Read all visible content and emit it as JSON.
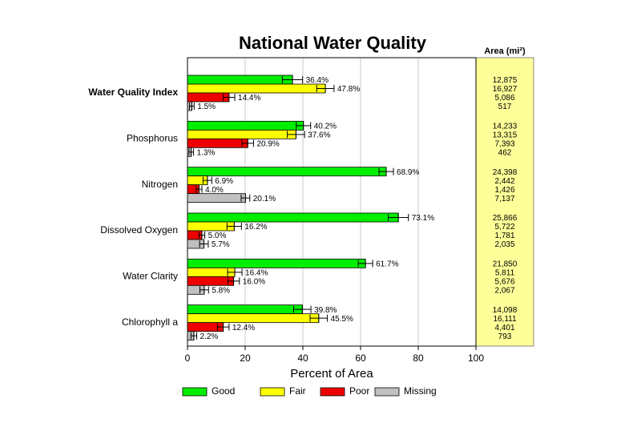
{
  "chart_data": {
    "type": "bar",
    "orientation": "horizontal",
    "title": "National Water Quality",
    "xlabel": "Percent of Area",
    "area_header": "Area (mi²)",
    "categories": [
      "Water Quality Index",
      "Phosphorus",
      "Nitrogen",
      "Dissolved Oxygen",
      "Water Clarity",
      "Chlorophyll a"
    ],
    "xlim": [
      0,
      100
    ],
    "xticks": [
      0,
      20,
      40,
      60,
      80,
      100
    ],
    "grid": true,
    "legend": "bottom",
    "series": [
      {
        "name": "Good",
        "color": "#00ee00",
        "values": [
          36.4,
          40.2,
          68.9,
          73.1,
          61.7,
          39.8
        ],
        "value_labels": [
          "36.4%",
          "40.2%",
          "68.9%",
          "73.1%",
          "61.7%",
          "39.8%"
        ],
        "errors": [
          3.5,
          2.5,
          2.5,
          3.5,
          2.5,
          3
        ],
        "area": [
          12875,
          14233,
          24398,
          25866,
          21850,
          14098
        ],
        "area_labels": [
          "12,875",
          "14,233",
          "24,398",
          "25,866",
          "21,850",
          "14,098"
        ]
      },
      {
        "name": "Fair",
        "color": "#ffff00",
        "values": [
          47.8,
          37.6,
          6.9,
          16.2,
          16.4,
          45.5
        ],
        "value_labels": [
          "47.8%",
          "37.6%",
          "6.9%",
          "16.2%",
          "16.4%",
          "45.5%"
        ],
        "errors": [
          3,
          3,
          1.5,
          2.5,
          2.5,
          3
        ],
        "area": [
          16927,
          13315,
          2442,
          5722,
          5811,
          16111
        ],
        "area_labels": [
          "16,927",
          "13,315",
          "2,442",
          "5,722",
          "5,811",
          "16,111"
        ]
      },
      {
        "name": "Poor",
        "color": "#ee0000",
        "values": [
          14.4,
          20.9,
          4.0,
          5.0,
          16.0,
          12.4
        ],
        "value_labels": [
          "14.4%",
          "20.9%",
          "4.0%",
          "5.0%",
          "16.0%",
          "12.4%"
        ],
        "errors": [
          2,
          2,
          1,
          1,
          2,
          2
        ],
        "area": [
          5086,
          7393,
          1426,
          1781,
          5676,
          4401
        ],
        "area_labels": [
          "5,086",
          "7,393",
          "1,426",
          "1,781",
          "5,676",
          "4,401"
        ]
      },
      {
        "name": "Missing",
        "color": "#c0c0c0",
        "values": [
          1.5,
          1.3,
          20.1,
          5.7,
          5.8,
          2.2
        ],
        "value_labels": [
          "1.5%",
          "1.3%",
          "20.1%",
          "5.7%",
          "5.8%",
          "2.2%"
        ],
        "errors": [
          0.8,
          0.8,
          1.5,
          1.5,
          1.5,
          1
        ],
        "area": [
          517,
          462,
          7137,
          2035,
          2067,
          793
        ],
        "area_labels": [
          "517",
          "462",
          "7,137",
          "2,035",
          "2,067",
          "793"
        ]
      }
    ]
  }
}
